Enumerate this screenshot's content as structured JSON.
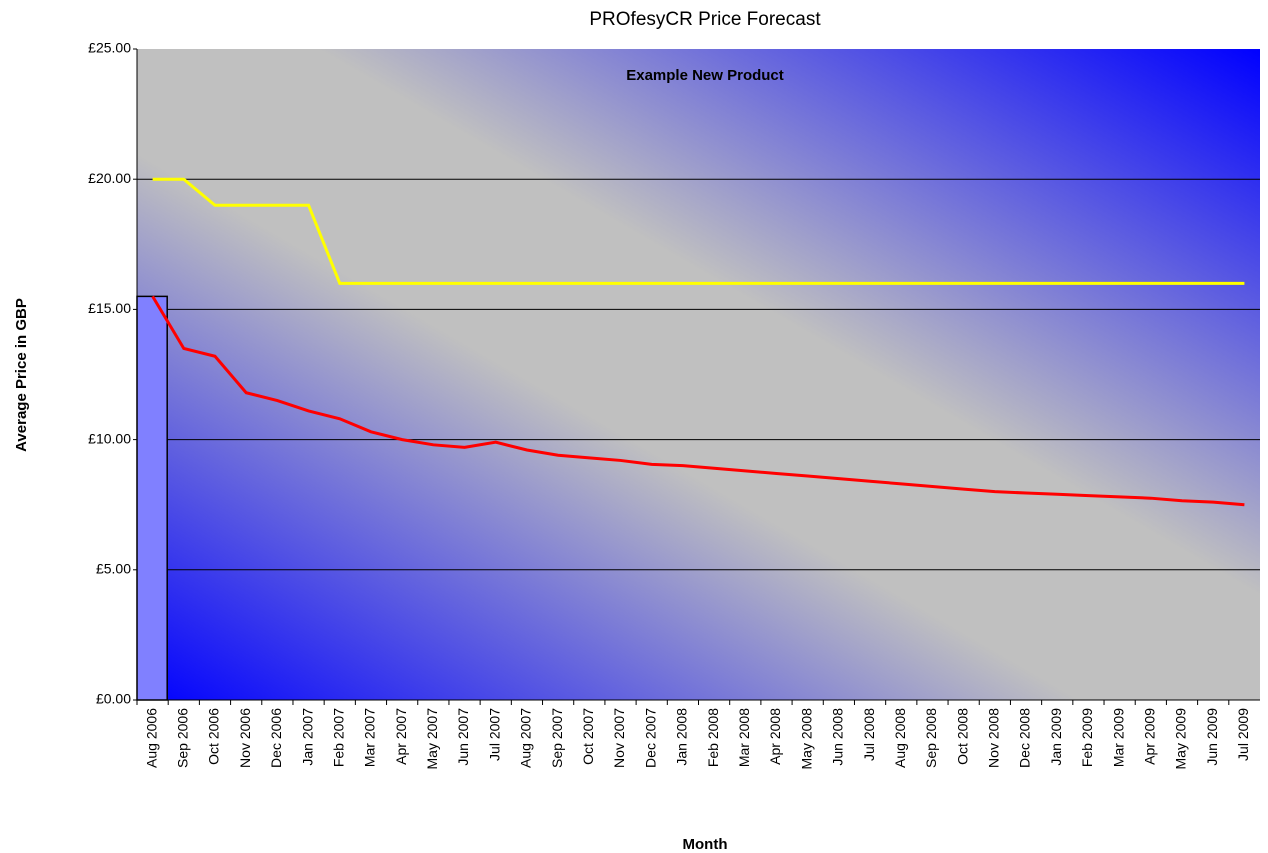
{
  "chart_data": {
    "type": "line",
    "title": "PROfesyCR Price Forecast",
    "subtitle": "Example New Product",
    "x_label": "Month",
    "y_label": "Average Price in GBP",
    "categories": [
      "Aug 2006",
      "Sep 2006",
      "Oct 2006",
      "Nov 2006",
      "Dec 2006",
      "Jan 2007",
      "Feb 2007",
      "Mar 2007",
      "Apr 2007",
      "May 2007",
      "Jun 2007",
      "Jul 2007",
      "Aug 2007",
      "Sep 2007",
      "Oct 2007",
      "Nov 2007",
      "Dec 2007",
      "Jan 2008",
      "Feb 2008",
      "Mar 2008",
      "Apr 2008",
      "May 2008",
      "Jun 2008",
      "Jul 2008",
      "Aug 2008",
      "Sep 2008",
      "Oct 2008",
      "Nov 2008",
      "Dec 2008",
      "Jan 2009",
      "Feb 2009",
      "Mar 2009",
      "Apr 2009",
      "May 2009",
      "Jun 2009",
      "Jul 2009"
    ],
    "series": [
      {
        "type": "bar",
        "color": "#8080ff",
        "values": [
          15.5,
          null,
          null,
          null,
          null,
          null,
          null,
          null,
          null,
          null,
          null,
          null,
          null,
          null,
          null,
          null,
          null,
          null,
          null,
          null,
          null,
          null,
          null,
          null,
          null,
          null,
          null,
          null,
          null,
          null,
          null,
          null,
          null,
          null,
          null,
          null
        ]
      },
      {
        "type": "line",
        "color": "#ffff00",
        "values": [
          20,
          20,
          19,
          19,
          19,
          19,
          16,
          16,
          16,
          16,
          16,
          16,
          16,
          16,
          16,
          16,
          16,
          16,
          16,
          16,
          16,
          16,
          16,
          16,
          16,
          16,
          16,
          16,
          16,
          16,
          16,
          16,
          16,
          16,
          16,
          16
        ]
      },
      {
        "type": "line",
        "color": "#ff0000",
        "values": [
          15.5,
          13.5,
          13.2,
          11.8,
          11.5,
          11.1,
          10.8,
          10.3,
          10.0,
          9.8,
          9.7,
          9.9,
          9.6,
          9.4,
          9.3,
          9.2,
          9.05,
          9.0,
          8.9,
          8.8,
          8.7,
          8.6,
          8.5,
          8.4,
          8.3,
          8.2,
          8.1,
          8.0,
          7.95,
          7.9,
          7.85,
          7.8,
          7.75,
          7.65,
          7.6,
          7.5
        ]
      }
    ],
    "ylim": [
      0,
      25
    ],
    "yticks": [
      {
        "value": 0,
        "label": "£0.00"
      },
      {
        "value": 5,
        "label": "£5.00"
      },
      {
        "value": 10,
        "label": "£10.00"
      },
      {
        "value": 15,
        "label": "£15.00"
      },
      {
        "value": 20,
        "label": "£20.00"
      },
      {
        "value": 25,
        "label": "£25.00"
      }
    ],
    "grid": true
  }
}
